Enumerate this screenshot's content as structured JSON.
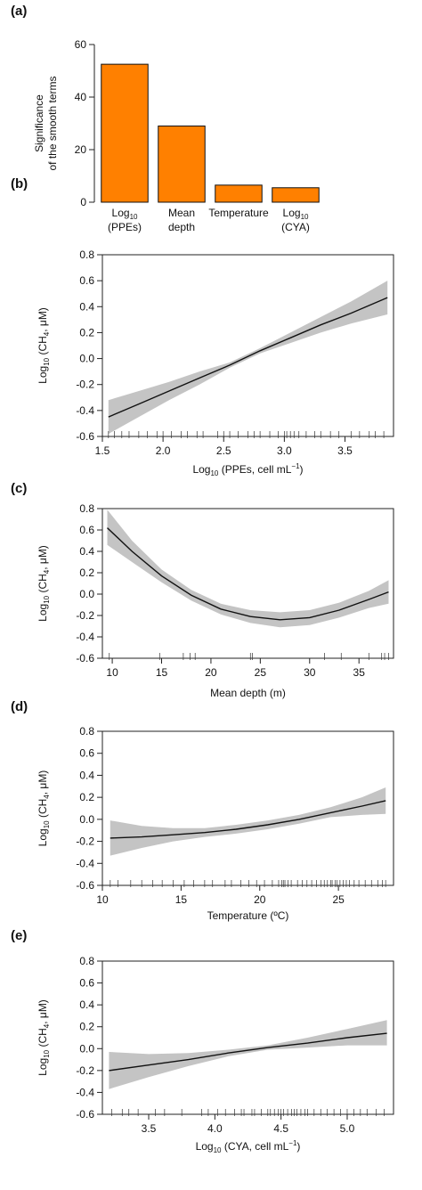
{
  "chart_data": [
    {
      "panel": "(a)",
      "type": "bar",
      "categories": [
        {
          "line1": "Log",
          "sub": "10",
          "line2": "(PPEs)"
        },
        {
          "line1": "Mean",
          "sub": "",
          "line2": "depth"
        },
        {
          "line1": "Temperature",
          "sub": "",
          "line2": ""
        },
        {
          "line1": "Log",
          "sub": "10",
          "line2": "(CYA)"
        }
      ],
      "values": [
        52.5,
        29,
        6.5,
        5.5
      ],
      "ylabel_line1": "Significance",
      "ylabel_line2": "of the smooth terms",
      "ylim": [
        0,
        60
      ],
      "yticks": [
        0,
        20,
        40,
        60
      ],
      "bar_color": "#ff8000"
    },
    {
      "panel": "(b)",
      "type": "line",
      "xlabel": "Log10 (PPEs, cell mL",
      "ylabel": "Log10 (CH4, μM)",
      "xlim": [
        1.5,
        3.9
      ],
      "xticks": [
        1.5,
        2.0,
        2.5,
        3.0,
        3.5
      ],
      "xtick_labels": [
        "1.5",
        "2.0",
        "2.5",
        "3.0",
        "3.5"
      ],
      "ylim": [
        -0.6,
        0.8
      ],
      "yticks": [
        -0.6,
        -0.4,
        -0.2,
        0.0,
        0.2,
        0.4,
        0.6,
        0.8
      ],
      "ytick_labels": [
        "-0.6",
        "-0.4",
        "-0.2",
        "0.0",
        "0.2",
        "0.4",
        "0.6",
        "0.8"
      ],
      "x": [
        1.55,
        1.8,
        2.05,
        2.3,
        2.55,
        2.8,
        3.05,
        3.3,
        3.55,
        3.85
      ],
      "fit": [
        -0.45,
        -0.35,
        -0.25,
        -0.15,
        -0.05,
        0.06,
        0.16,
        0.26,
        0.35,
        0.47
      ],
      "lower": [
        -0.58,
        -0.45,
        -0.32,
        -0.2,
        -0.07,
        0.04,
        0.12,
        0.2,
        0.27,
        0.34
      ],
      "upper": [
        -0.32,
        -0.25,
        -0.18,
        -0.1,
        -0.03,
        0.08,
        0.2,
        0.32,
        0.44,
        0.6
      ],
      "rug": [
        1.55,
        1.6,
        1.66,
        1.72,
        1.8,
        1.87,
        1.95,
        2.0,
        2.07,
        2.15,
        2.2,
        2.28,
        2.33,
        2.45,
        2.5,
        2.55,
        2.62,
        2.7,
        2.75,
        2.8,
        2.88,
        2.95,
        3.0,
        3.02,
        3.05,
        3.08,
        3.12,
        3.18,
        3.25,
        3.3,
        3.38,
        3.45,
        3.55,
        3.62,
        3.7,
        3.75,
        3.82
      ]
    },
    {
      "panel": "(c)",
      "type": "line",
      "xlabel": "Mean depth (m)",
      "ylabel": "Log10 (CH4, μM)",
      "xlim": [
        9,
        38.5
      ],
      "xticks": [
        10,
        15,
        20,
        25,
        30,
        35
      ],
      "xtick_labels": [
        "10",
        "15",
        "20",
        "25",
        "30",
        "35"
      ],
      "ylim": [
        -0.6,
        0.8
      ],
      "yticks": [
        -0.6,
        -0.4,
        -0.2,
        0.0,
        0.2,
        0.4,
        0.6,
        0.8
      ],
      "ytick_labels": [
        "-0.6",
        "-0.4",
        "-0.2",
        "0.0",
        "0.2",
        "0.4",
        "0.6",
        "0.8"
      ],
      "x": [
        9.5,
        12,
        15,
        18,
        21,
        24,
        27,
        30,
        33,
        36,
        38
      ],
      "fit": [
        0.62,
        0.4,
        0.17,
        -0.01,
        -0.14,
        -0.21,
        -0.24,
        -0.22,
        -0.15,
        -0.05,
        0.02
      ],
      "lower": [
        0.46,
        0.3,
        0.11,
        -0.06,
        -0.19,
        -0.27,
        -0.31,
        -0.29,
        -0.22,
        -0.13,
        -0.09
      ],
      "upper": [
        0.79,
        0.5,
        0.23,
        0.04,
        -0.09,
        -0.15,
        -0.17,
        -0.15,
        -0.08,
        0.03,
        0.13
      ],
      "rug": [
        9.7,
        14.8,
        17.2,
        17.9,
        18.4,
        24.0,
        24.2,
        31.5,
        33.2,
        36.0,
        37.3,
        37.6,
        38.0
      ]
    },
    {
      "panel": "(d)",
      "type": "line",
      "xlabel": "Temperature (ºC)",
      "ylabel": "Log10 (CH4, μM)",
      "xlim": [
        10,
        28.5
      ],
      "xticks": [
        10,
        15,
        20,
        25
      ],
      "xtick_labels": [
        "10",
        "15",
        "20",
        "25"
      ],
      "ylim": [
        -0.6,
        0.8
      ],
      "yticks": [
        -0.6,
        -0.4,
        -0.2,
        0.0,
        0.2,
        0.4,
        0.6,
        0.8
      ],
      "ytick_labels": [
        "-0.6",
        "-0.4",
        "-0.2",
        "0.0",
        "0.2",
        "0.4",
        "0.6",
        "0.8"
      ],
      "x": [
        10.5,
        12.5,
        14.5,
        16.5,
        18.5,
        20.5,
        22.5,
        24.5,
        26.5,
        28
      ],
      "fit": [
        -0.17,
        -0.16,
        -0.14,
        -0.12,
        -0.09,
        -0.05,
        0.0,
        0.06,
        0.12,
        0.17
      ],
      "lower": [
        -0.33,
        -0.26,
        -0.2,
        -0.16,
        -0.13,
        -0.09,
        -0.04,
        0.02,
        0.04,
        0.05
      ],
      "upper": [
        -0.01,
        -0.06,
        -0.08,
        -0.08,
        -0.05,
        -0.01,
        0.04,
        0.11,
        0.2,
        0.29
      ],
      "rug": [
        10.5,
        11.0,
        11.8,
        12.5,
        13.2,
        13.8,
        14.5,
        15.2,
        15.8,
        16.5,
        17.0,
        17.8,
        18.2,
        18.8,
        19.3,
        19.8,
        20.3,
        20.8,
        21.2,
        21.4,
        21.5,
        21.6,
        21.8,
        22.0,
        22.4,
        22.7,
        23.0,
        23.3,
        23.6,
        23.9,
        24.1,
        24.3,
        24.5,
        24.6,
        24.8,
        24.9,
        25.1,
        25.3,
        25.5,
        25.7,
        26.0,
        26.3,
        26.7,
        27.1,
        27.5,
        27.8,
        28.0
      ]
    },
    {
      "panel": "(e)",
      "type": "line",
      "xlabel": "Log10 (CYA, cell mL",
      "ylabel": "Log10 (CH4, μM)",
      "xlim": [
        3.15,
        5.35
      ],
      "xticks": [
        3.5,
        4.0,
        4.5,
        5.0
      ],
      "xtick_labels": [
        "3.5",
        "4.0",
        "4.5",
        "5.0"
      ],
      "ylim": [
        -0.6,
        0.8
      ],
      "yticks": [
        -0.6,
        -0.4,
        -0.2,
        0.0,
        0.2,
        0.4,
        0.6,
        0.8
      ],
      "ytick_labels": [
        "-0.6",
        "-0.4",
        "-0.2",
        "0.0",
        "0.2",
        "0.4",
        "0.6",
        "0.8"
      ],
      "x": [
        3.2,
        3.5,
        3.8,
        4.1,
        4.4,
        4.7,
        5.0,
        5.3
      ],
      "fit": [
        -0.2,
        -0.15,
        -0.1,
        -0.04,
        0.01,
        0.05,
        0.1,
        0.14
      ],
      "lower": [
        -0.37,
        -0.26,
        -0.16,
        -0.07,
        -0.01,
        0.01,
        0.03,
        0.03
      ],
      "upper": [
        -0.03,
        -0.05,
        -0.04,
        -0.01,
        0.03,
        0.1,
        0.18,
        0.26
      ],
      "rug": [
        3.22,
        3.3,
        3.35,
        3.42,
        3.55,
        3.62,
        3.75,
        3.9,
        3.95,
        4.02,
        4.08,
        4.15,
        4.2,
        4.22,
        4.28,
        4.3,
        4.35,
        4.4,
        4.42,
        4.45,
        4.48,
        4.5,
        4.52,
        4.55,
        4.58,
        4.6,
        4.62,
        4.65,
        4.68,
        4.7,
        4.75,
        4.8,
        4.85,
        4.9,
        4.95,
        5.0,
        5.05,
        5.1,
        5.15,
        5.22,
        5.28
      ]
    }
  ]
}
